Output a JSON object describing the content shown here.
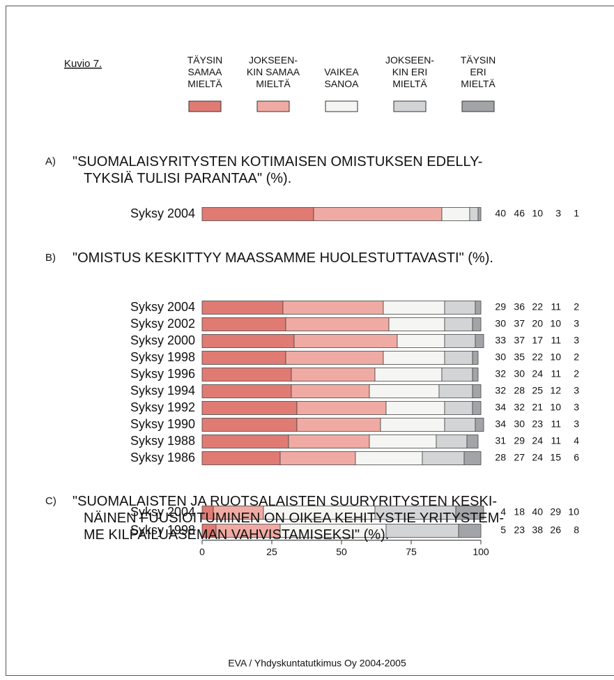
{
  "chart_data": {
    "type": "bar",
    "orientation": "horizontal",
    "stacked": true,
    "figure_label": "Kuvio 7.",
    "series": [
      {
        "name": "TÄYSIN\nSAMAA\nMIELTÄ",
        "color": "#e07b74"
      },
      {
        "name": "JOKSEEN-\nKIN SAMAA\nMIELTÄ",
        "color": "#efaba3"
      },
      {
        "name": "VAIKEA\nSANOA",
        "color": "#f5f6f3"
      },
      {
        "name": "JOKSEEN-\nKIN ERI\nMIELTÄ",
        "color": "#d3d4d6"
      },
      {
        "name": "TÄYSIN\nERI\nMIELTÄ",
        "color": "#a3a4a8"
      }
    ],
    "xlim": [
      0,
      100
    ],
    "xticks": [
      0,
      25,
      50,
      75,
      100
    ],
    "panels": [
      {
        "label": "A)",
        "title": "\"SUOMALAISYRITYSTEN KOTIMAISEN OMISTUKSEN EDELLY-\nTYKSIÄ TULISI PARANTAA\" (%).",
        "categories": [
          "Syksy 2004"
        ],
        "values": [
          [
            40,
            46,
            10,
            3,
            1
          ]
        ]
      },
      {
        "label": "B)",
        "title": "\"OMISTUS KESKITTYY MAASSAMME HUOLESTUTTAVASTI\" (%).",
        "categories": [
          "Syksy 2004",
          "Syksy 2002",
          "Syksy 2000",
          "Syksy 1998",
          "Syksy 1996",
          "Syksy 1994",
          "Syksy 1992",
          "Syksy 1990",
          "Syksy 1988",
          "Syksy 1986"
        ],
        "values": [
          [
            29,
            36,
            22,
            11,
            2
          ],
          [
            30,
            37,
            20,
            10,
            3
          ],
          [
            33,
            37,
            17,
            11,
            3
          ],
          [
            30,
            35,
            22,
            10,
            2
          ],
          [
            32,
            30,
            24,
            11,
            2
          ],
          [
            32,
            28,
            25,
            12,
            3
          ],
          [
            34,
            32,
            21,
            10,
            3
          ],
          [
            34,
            30,
            23,
            11,
            3
          ],
          [
            31,
            29,
            24,
            11,
            4
          ],
          [
            28,
            27,
            24,
            15,
            6
          ]
        ]
      },
      {
        "label": "C)",
        "title": "\"SUOMALAISTEN JA RUOTSALAISTEN SUURYRITYSTEN KESKI-\nNÄINEN FUUSIOITUMINEN ON OIKEA KEHITYSTIE YRITYSTEM-\nME KILPAILUASEMAN VAHVISTAMISEKSI\" (%).",
        "categories": [
          "Syksy 2004",
          "Syksy 1998"
        ],
        "values": [
          [
            4,
            18,
            40,
            29,
            10
          ],
          [
            5,
            23,
            38,
            26,
            8
          ]
        ]
      }
    ],
    "source": "EVA / Yhdyskuntatutkimus Oy 2004-2005"
  }
}
